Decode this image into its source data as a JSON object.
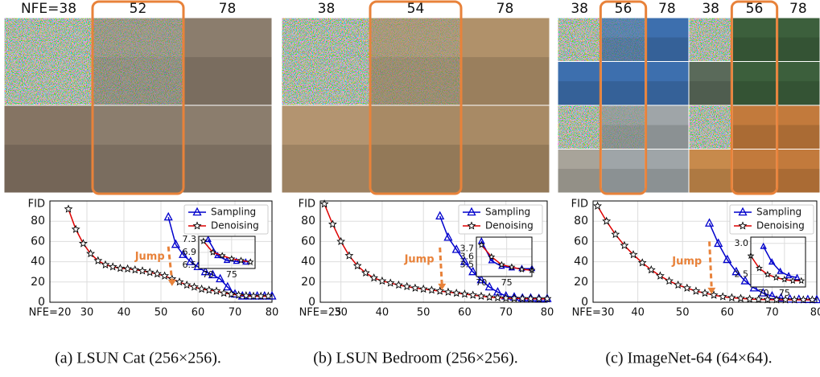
{
  "chart_data": [
    {
      "type": "line",
      "caption": "(a) LSUN Cat (256×256).",
      "column_labels": [
        "NFE=38",
        "52",
        "78"
      ],
      "y_label": "FID",
      "xlim": [
        20,
        80
      ],
      "xticks": [
        {
          "value": 20,
          "label": "NFE=20"
        },
        30,
        40,
        50,
        60,
        70,
        80
      ],
      "ylim": [
        0,
        100
      ],
      "yticks": [
        0,
        20,
        40,
        60,
        80
      ],
      "grid": true,
      "legend": "upper right",
      "annotation": "Jump",
      "series": [
        {
          "name": "Sampling",
          "color": "#0000cc",
          "marker": "triangle",
          "x": [
            52,
            54,
            56,
            58,
            60,
            62,
            64,
            66,
            68,
            70,
            72,
            74,
            76,
            78,
            80
          ],
          "values": [
            84,
            57,
            47,
            40,
            35,
            30,
            27,
            23,
            15,
            8,
            6,
            6,
            6,
            6,
            6
          ]
        },
        {
          "name": "Denoising",
          "color": "#dd0000",
          "marker": "star",
          "x": [
            25,
            27,
            29,
            31,
            33,
            35,
            37,
            39,
            41,
            43,
            45,
            47,
            49,
            51,
            53,
            55,
            57,
            59,
            61,
            63,
            65,
            67,
            69,
            71,
            73,
            75,
            77,
            79
          ],
          "values": [
            92,
            72,
            58,
            48,
            41,
            37,
            35,
            33.5,
            33,
            32,
            31,
            29.5,
            28,
            26,
            23,
            20,
            17,
            15,
            13,
            12,
            11,
            9,
            8,
            7,
            6.5,
            6,
            6,
            6
          ]
        }
      ],
      "inset": {
        "xlim": [
          68,
          80
        ],
        "ylim": [
          6.4,
          7.4
        ],
        "xticks": [
          70,
          75
        ],
        "yticks": [
          6.5,
          6.9,
          7.3
        ],
        "series": [
          {
            "x": [
              70,
              72,
              74,
              76,
              78
            ],
            "values": [
              7.3,
              6.8,
              6.65,
              6.62,
              6.6
            ]
          },
          {
            "x": [
              69,
              71,
              73,
              75,
              77,
              79
            ],
            "values": [
              7.25,
              6.9,
              6.8,
              6.7,
              6.65,
              6.6
            ]
          }
        ]
      }
    },
    {
      "type": "line",
      "caption": "(b) LSUN Bedroom (256×256).",
      "column_labels": [
        "38",
        "54",
        "78"
      ],
      "y_label": "FID",
      "xlim": [
        25,
        80
      ],
      "xticks": [
        {
          "value": 25,
          "label": "NFE=25"
        },
        30,
        40,
        50,
        60,
        70,
        80
      ],
      "ylim": [
        0,
        100
      ],
      "yticks": [
        0,
        20,
        40,
        60,
        80
      ],
      "grid": true,
      "legend": "upper right",
      "annotation": "Jump",
      "series": [
        {
          "name": "Sampling",
          "color": "#0000cc",
          "marker": "triangle",
          "x": [
            54,
            56,
            58,
            60,
            62,
            64,
            66,
            68,
            70,
            72,
            74,
            76,
            78,
            80
          ],
          "values": [
            85,
            64,
            52,
            40,
            30,
            22,
            15,
            10,
            6,
            5,
            4,
            4,
            3.5,
            3.5
          ]
        },
        {
          "name": "Denoising",
          "color": "#dd0000",
          "marker": "star",
          "x": [
            26,
            28,
            30,
            32,
            34,
            36,
            38,
            40,
            42,
            44,
            46,
            48,
            50,
            52,
            54,
            56,
            58,
            60,
            62,
            64,
            66,
            68,
            70,
            72,
            74,
            76,
            78,
            80
          ],
          "values": [
            97,
            77,
            60,
            46,
            36,
            29,
            24,
            21,
            19,
            17,
            15.5,
            14,
            13,
            12,
            11,
            10,
            9,
            8,
            7,
            6,
            5,
            4.5,
            4,
            3.8,
            3.6,
            3.5,
            3.4,
            3.4
          ]
        }
      ],
      "inset": {
        "xlim": [
          69,
          80
        ],
        "ylim": [
          3.35,
          3.85
        ],
        "xticks": [
          70,
          75
        ],
        "yticks": [
          3.5,
          3.6,
          3.7
        ],
        "series": [
          {
            "x": [
              70,
              72,
              74,
              76,
              78,
              80
            ],
            "values": [
              3.8,
              3.55,
              3.48,
              3.46,
              3.45,
              3.45
            ]
          },
          {
            "x": [
              70,
              72,
              74,
              76,
              78,
              80
            ],
            "values": [
              3.75,
              3.6,
              3.5,
              3.47,
              3.44,
              3.43
            ]
          }
        ]
      }
    },
    {
      "type": "line",
      "caption": "(c) ImageNet-64 (64×64).",
      "column_labels": [
        "38",
        "56",
        "78",
        "38",
        "56",
        "78"
      ],
      "y_label": "FID",
      "xlim": [
        30,
        80
      ],
      "xticks": [
        {
          "value": 30,
          "label": "NFE=30"
        },
        40,
        50,
        60,
        70,
        80
      ],
      "ylim": [
        0,
        100
      ],
      "yticks": [
        0,
        20,
        40,
        60,
        80
      ],
      "grid": true,
      "legend": "upper right",
      "annotation": "Jump",
      "series": [
        {
          "name": "Sampling",
          "color": "#0000cc",
          "marker": "triangle",
          "x": [
            56,
            58,
            60,
            62,
            64,
            66,
            68,
            70,
            72,
            74,
            76,
            78,
            80
          ],
          "values": [
            78,
            58,
            42,
            30,
            21,
            14,
            9,
            6,
            4,
            3,
            2.7,
            2.5,
            2.4
          ]
        },
        {
          "name": "Denoising",
          "color": "#dd0000",
          "marker": "star",
          "x": [
            31,
            33,
            35,
            37,
            39,
            41,
            43,
            45,
            47,
            49,
            51,
            53,
            55,
            57,
            59,
            61,
            63,
            65,
            67,
            69,
            71,
            73,
            75,
            77,
            79
          ],
          "values": [
            95,
            80,
            67,
            56,
            47,
            39,
            32,
            26,
            21,
            17,
            14,
            11,
            9,
            7,
            5.5,
            4.5,
            3.8,
            3.2,
            2.8,
            2.6,
            2.5,
            2.45,
            2.4,
            2.4,
            2.4
          ]
        }
      ],
      "inset": {
        "xlim": [
          67,
          80
        ],
        "ylim": [
          2.3,
          3.1
        ],
        "xticks": [
          70,
          75
        ],
        "yticks": [
          2.5,
          {
            "value": 3,
            "label": "3.0"
          }
        ],
        "series": [
          {
            "x": [
              70,
              72,
              74,
              76,
              78
            ],
            "values": [
              2.95,
              2.7,
              2.55,
              2.48,
              2.45
            ]
          },
          {
            "x": [
              67,
              69,
              71,
              73,
              75,
              77,
              79
            ],
            "values": [
              2.8,
              2.6,
              2.5,
              2.45,
              2.42,
              2.4,
              2.4
            ]
          }
        ]
      }
    }
  ]
}
